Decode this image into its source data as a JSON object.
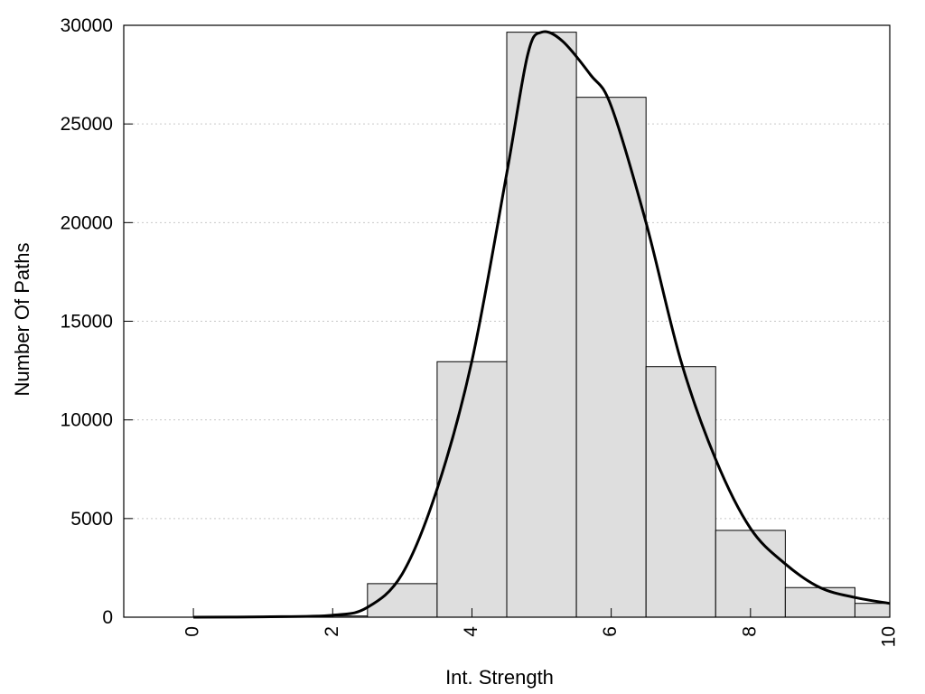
{
  "chart_data": {
    "type": "bar",
    "title": "",
    "xlabel": "Int. Strength",
    "ylabel": "Number Of Paths",
    "xlim": [
      -1,
      10
    ],
    "ylim": [
      0,
      30000
    ],
    "grid": "horizontal dotted",
    "legend": "none",
    "x_ticks": [
      0,
      2,
      4,
      6,
      8,
      10
    ],
    "y_ticks": [
      0,
      5000,
      10000,
      15000,
      20000,
      25000,
      30000
    ],
    "bins": [
      {
        "x": 0,
        "value": 0
      },
      {
        "x": 1,
        "value": 0
      },
      {
        "x": 2,
        "value": 60
      },
      {
        "x": 3,
        "value": 1700
      },
      {
        "x": 4,
        "value": 12950
      },
      {
        "x": 5,
        "value": 29650
      },
      {
        "x": 6,
        "value": 26350
      },
      {
        "x": 7,
        "value": 12700
      },
      {
        "x": 8,
        "value": 4400
      },
      {
        "x": 9,
        "value": 1500
      },
      {
        "x": 10,
        "value": 700
      }
    ],
    "bin_width": 1,
    "curve": {
      "points": [
        [
          0,
          0
        ],
        [
          1,
          20
        ],
        [
          2,
          100
        ],
        [
          2.5,
          500
        ],
        [
          3,
          2200
        ],
        [
          3.5,
          6500
        ],
        [
          4,
          13000
        ],
        [
          4.5,
          22500
        ],
        [
          4.8,
          28500
        ],
        [
          5,
          29650
        ],
        [
          5.3,
          29200
        ],
        [
          5.7,
          27500
        ],
        [
          6,
          25900
        ],
        [
          6.5,
          20000
        ],
        [
          7,
          13000
        ],
        [
          7.5,
          8000
        ],
        [
          8,
          4500
        ],
        [
          8.5,
          2700
        ],
        [
          9,
          1500
        ],
        [
          9.5,
          1000
        ],
        [
          10,
          700
        ]
      ]
    },
    "colors": {
      "bar_fill": "#dedede",
      "bar_stroke": "#000000",
      "curve": "#000000",
      "grid": "#c8c8c8"
    }
  }
}
